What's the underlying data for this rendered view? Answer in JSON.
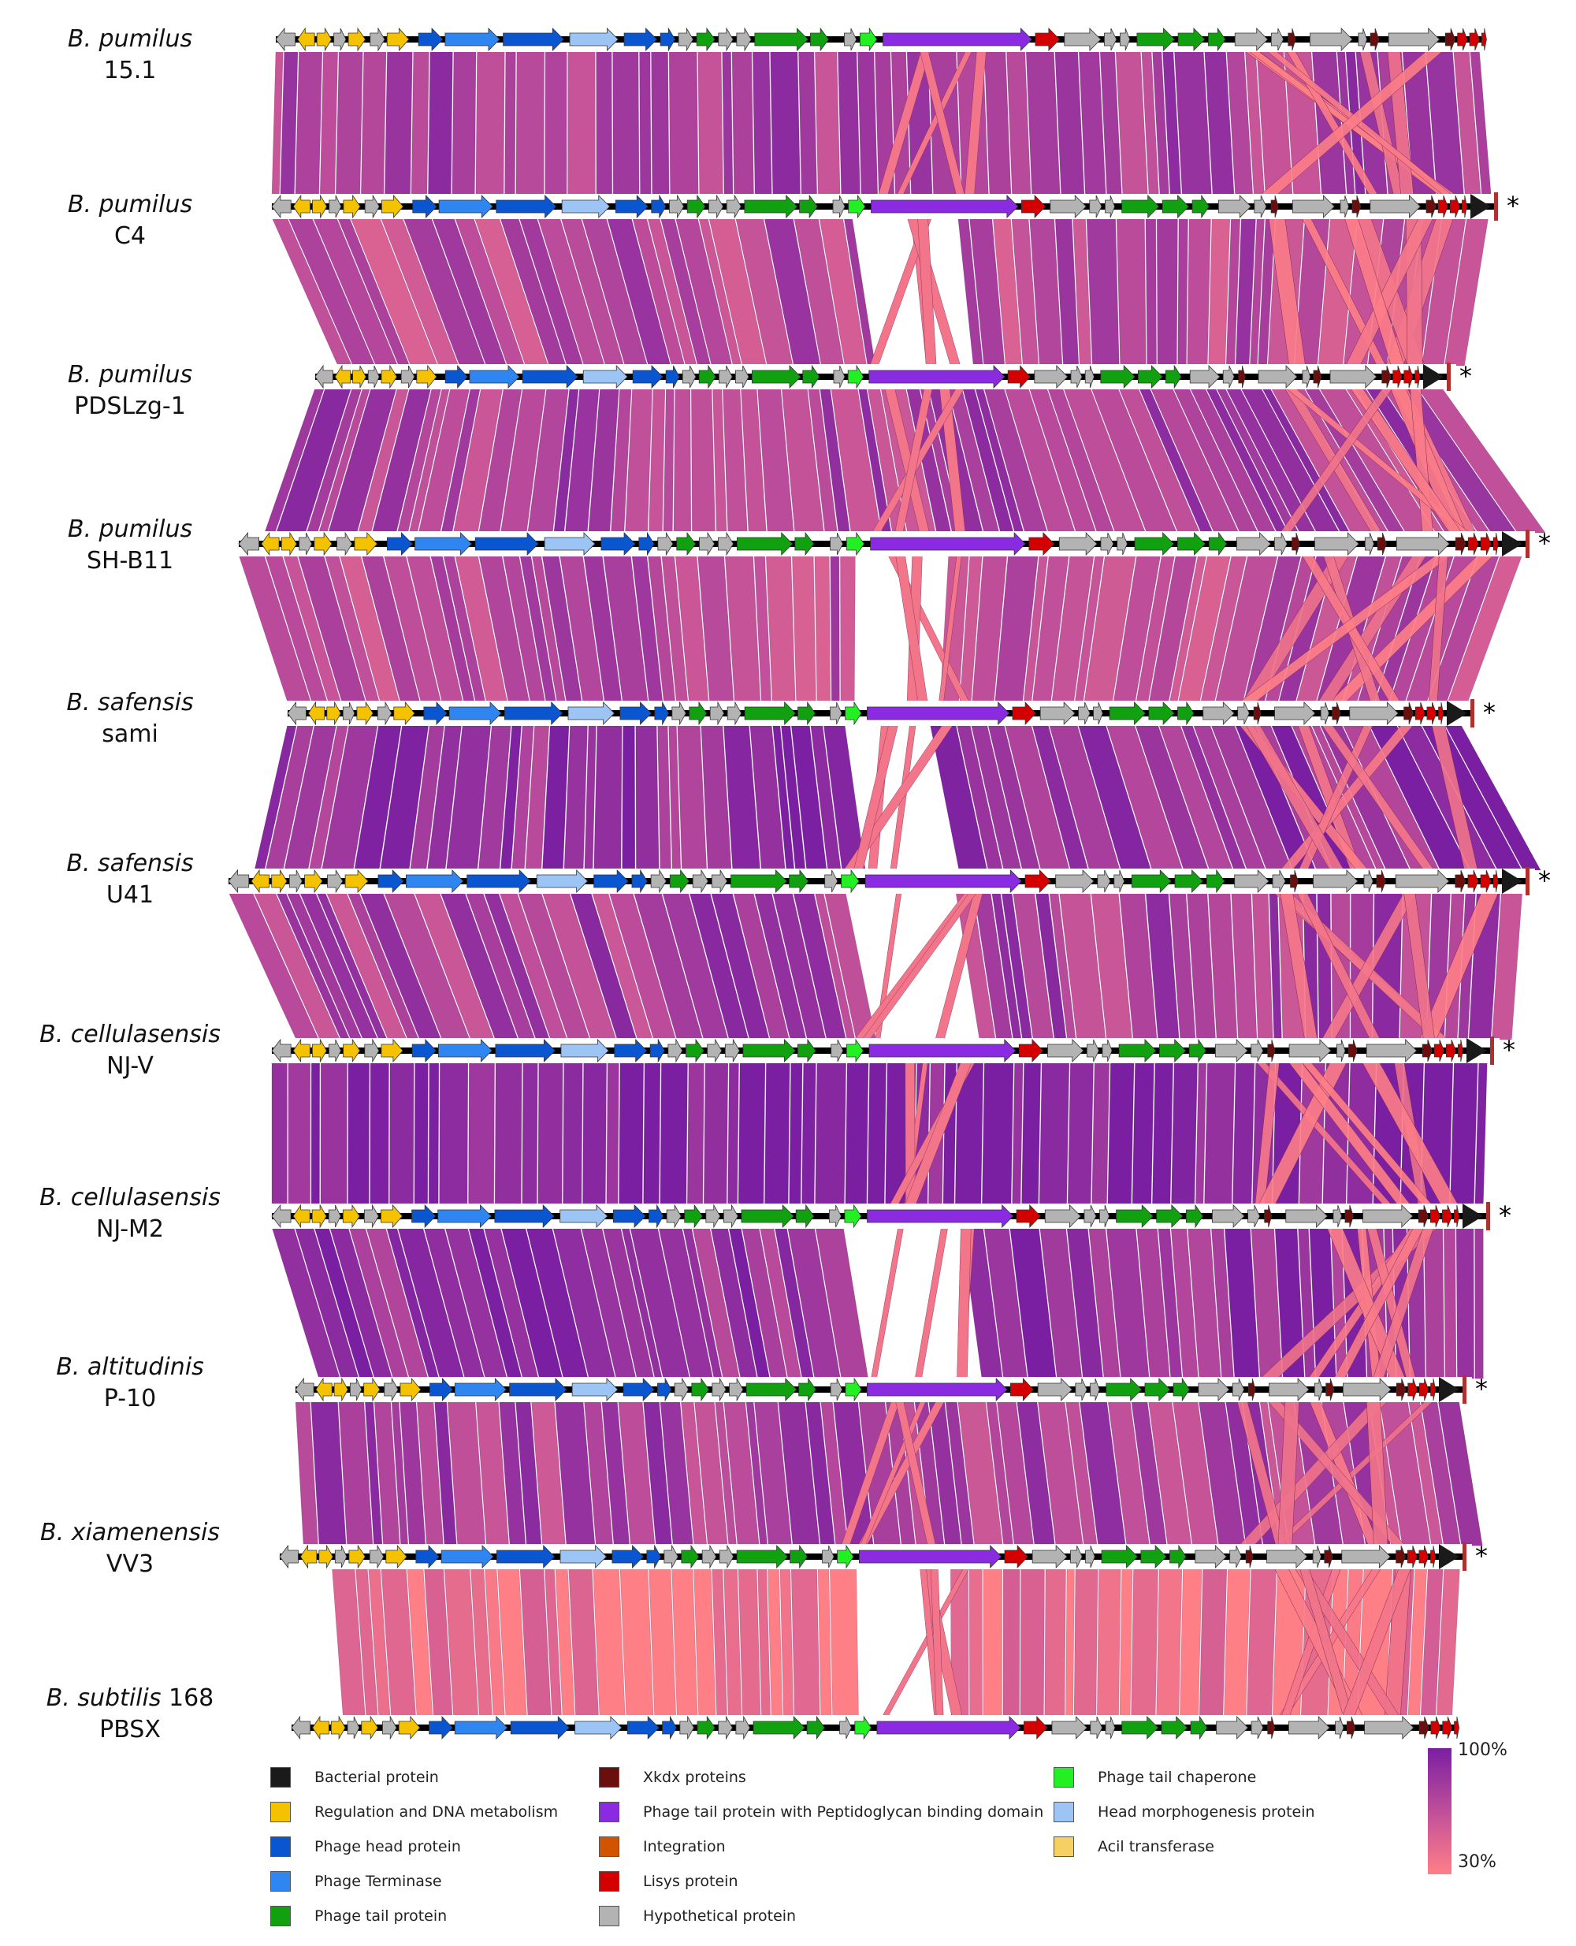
{
  "genomes": [
    {
      "species": "B. pumilus",
      "strain": "15.1",
      "asterisk": ""
    },
    {
      "species": "B. pumilus",
      "strain": "C4",
      "asterisk": "*"
    },
    {
      "species": "B. pumilus",
      "strain": "PDSLzg-1",
      "asterisk": "*"
    },
    {
      "species": "B. pumilus",
      "strain": "SH-B11",
      "asterisk": "*"
    },
    {
      "species": "B. safensis",
      "strain": "sami",
      "asterisk": "*"
    },
    {
      "species": "B. safensis",
      "strain": "U41",
      "asterisk": "*"
    },
    {
      "species": "B. cellulasensis",
      "strain": "NJ-V",
      "asterisk": "*"
    },
    {
      "species": "B. cellulasensis",
      "strain": "NJ-M2",
      "asterisk": "*"
    },
    {
      "species": "B. altitudinis",
      "strain": "P-10",
      "asterisk": "*"
    },
    {
      "species": "B. xiamenensis",
      "strain": "VV3",
      "asterisk": "*"
    },
    {
      "species": "B. subtilis",
      "species_suffix": " 168",
      "strain": "PBSX",
      "asterisk": ""
    }
  ],
  "legend": [
    {
      "label": "Bacterial protein",
      "color": "#1a1a1a"
    },
    {
      "label": "Regulation and DNA metabolism",
      "color": "#f5c200"
    },
    {
      "label": "Phage head protein",
      "color": "#0a55d0"
    },
    {
      "label": "Phage Terminase",
      "color": "#2f86f0"
    },
    {
      "label": "Phage tail protein",
      "color": "#10a010"
    },
    {
      "label": "Xkdx proteins",
      "color": "#6a0e0e"
    },
    {
      "label": "Phage tail protein with Peptidoglycan binding domain",
      "color": "#8a2be2"
    },
    {
      "label": "Integration",
      "color": "#d35400"
    },
    {
      "label": "Lisys protein",
      "color": "#d40000"
    },
    {
      "label": "Hypothetical protein",
      "color": "#b3b3b3"
    },
    {
      "label": "Phage tail chaperone",
      "color": "#22f022"
    },
    {
      "label": "Head morphogenesis protein",
      "color": "#9cc4f5"
    },
    {
      "label": "Acil transferase",
      "color": "#f5d062"
    }
  ],
  "identity_scale": {
    "max_label": "100%",
    "min_label": "30%",
    "max_color": "#7a1fa2",
    "min_color": "#ff7f86"
  }
}
